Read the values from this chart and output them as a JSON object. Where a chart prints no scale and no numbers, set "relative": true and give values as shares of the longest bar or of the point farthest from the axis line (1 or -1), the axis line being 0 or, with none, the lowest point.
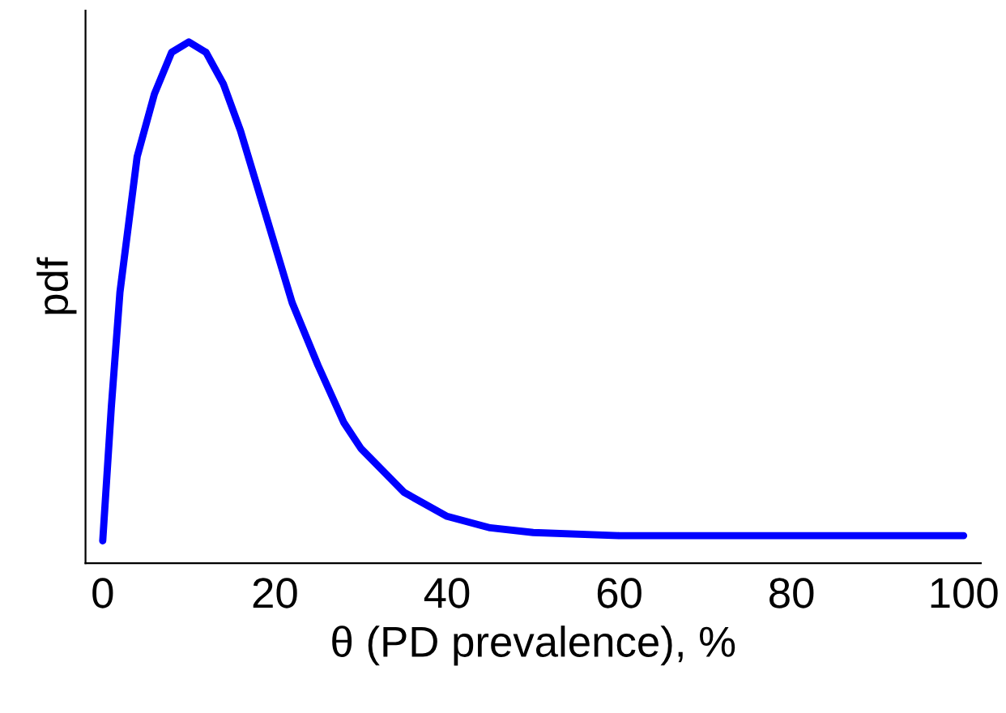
{
  "chart_data": {
    "type": "line",
    "xlabel": "θ (PD prevalence), %",
    "ylabel": "pdf",
    "relative": true,
    "x": [
      0,
      1,
      2,
      4,
      6,
      8,
      10,
      12,
      14,
      16,
      18,
      20,
      22,
      25,
      28,
      30,
      35,
      40,
      45,
      50,
      60,
      80,
      100
    ],
    "series": [
      {
        "color": "#0000ff",
        "values": [
          0.043,
          0.3,
          0.52,
          0.78,
          0.9,
          0.98,
          1.0,
          0.98,
          0.92,
          0.83,
          0.72,
          0.61,
          0.5,
          0.38,
          0.27,
          0.22,
          0.136,
          0.09,
          0.068,
          0.059,
          0.053,
          0.053,
          0.053
        ]
      }
    ],
    "xlim": [
      -2,
      102
    ],
    "xticks": [
      0,
      20,
      40,
      60,
      80,
      100
    ],
    "grid": false,
    "legend": false,
    "marker": "none",
    "line_style": "solid"
  }
}
